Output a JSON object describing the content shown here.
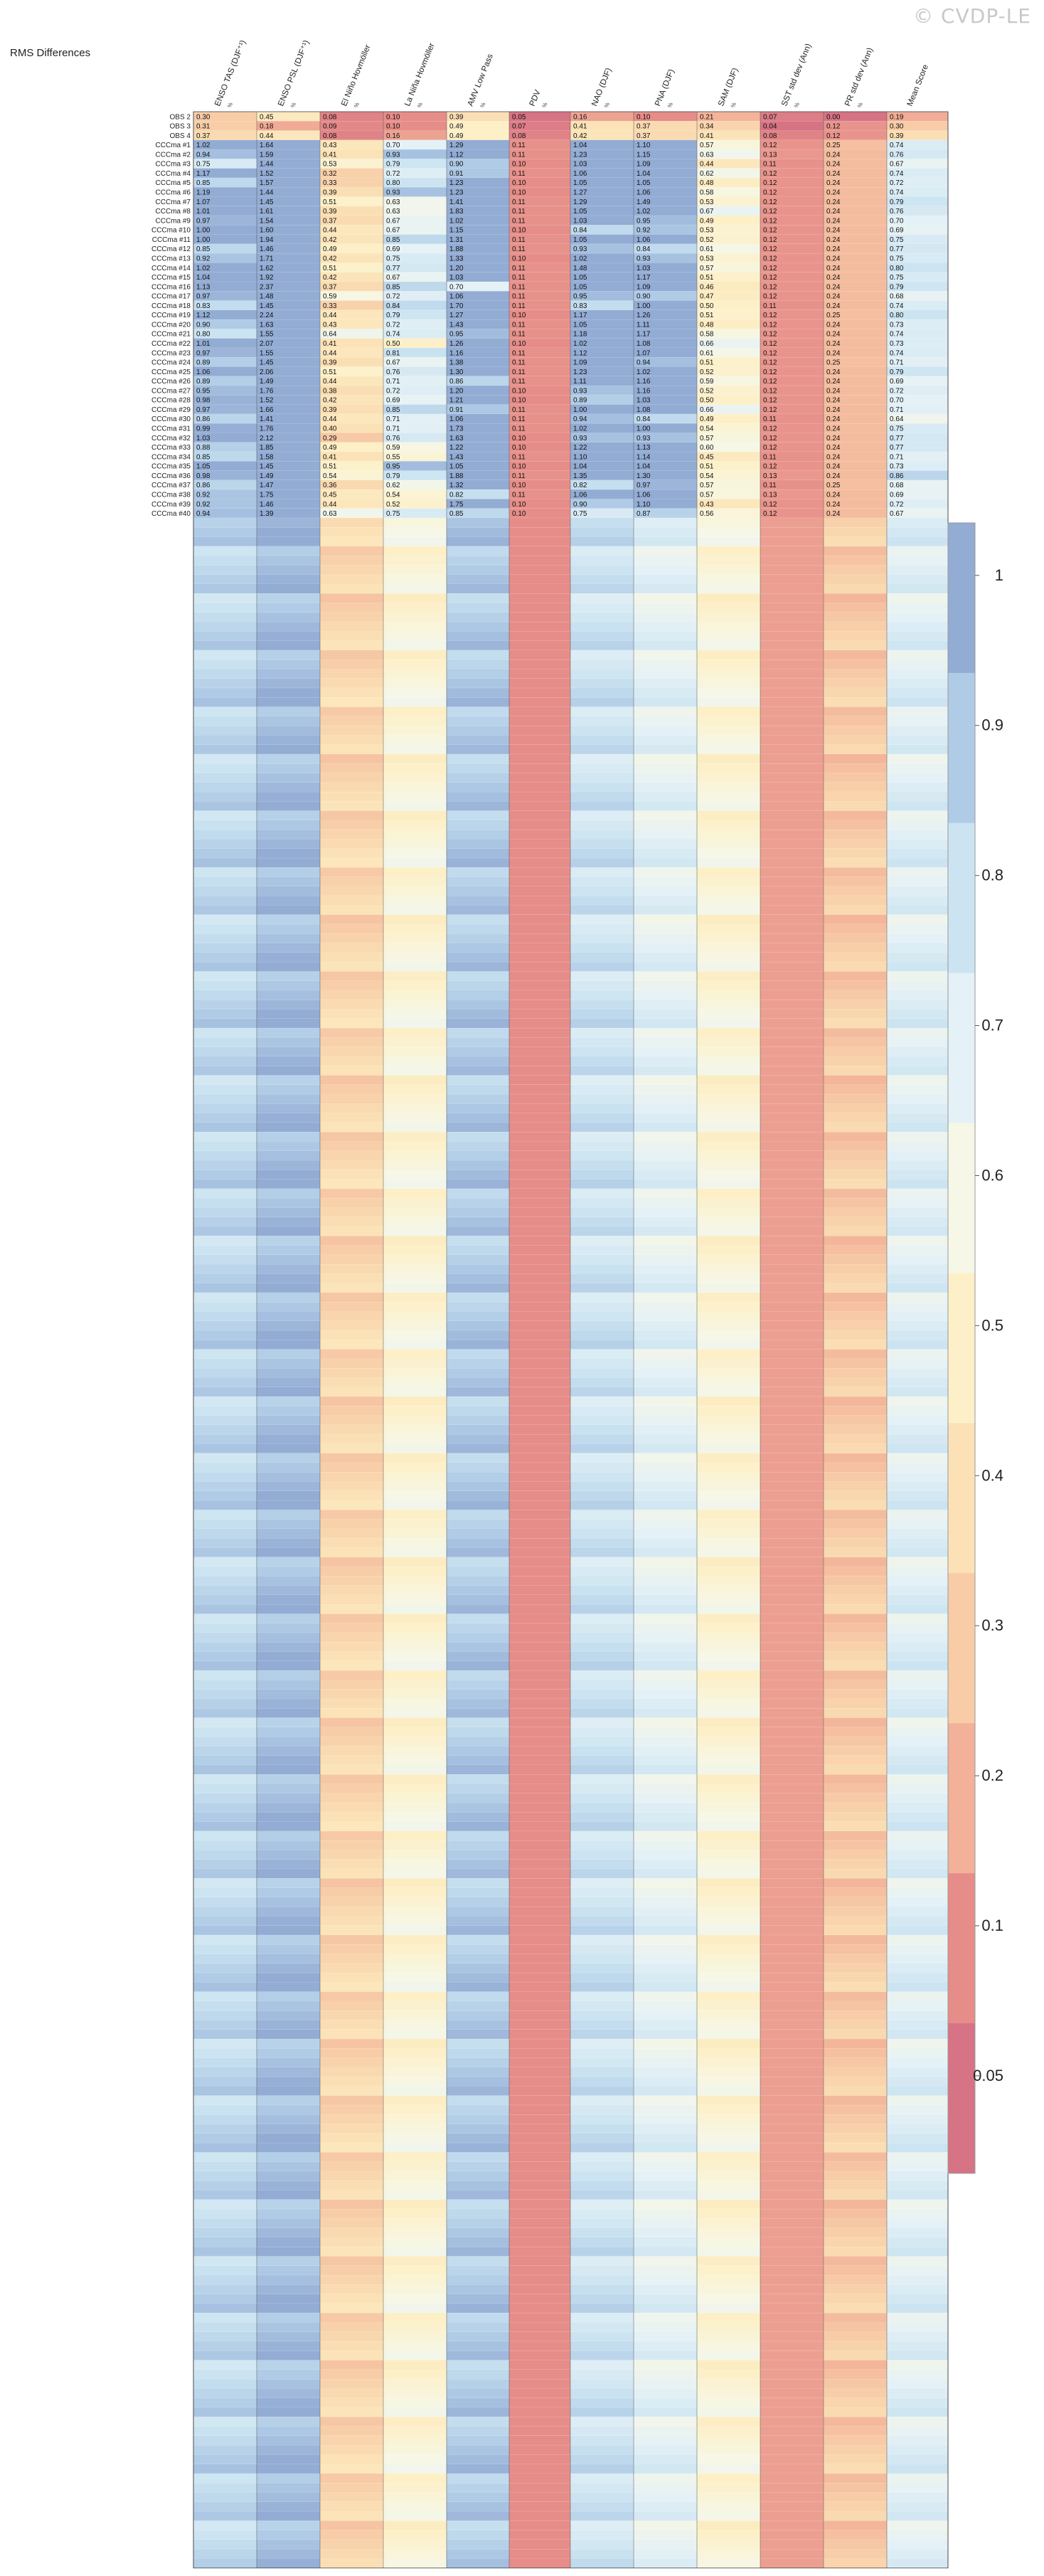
{
  "watermark": "© CVDP-LE",
  "title": "RMS Differences",
  "colorbar_ticks": [
    "1",
    "0.9",
    "0.8",
    "0.7",
    "0.6",
    "0.5",
    "0.4",
    "0.3",
    "0.2",
    "0.1",
    "0.05"
  ],
  "chart_data": {
    "type": "heatmap",
    "title": "RMS Differences",
    "columns": [
      {
        "name": "ENSO TAS (DJF⁺¹)",
        "sub": "%"
      },
      {
        "name": "ENSO PSL (DJF⁺¹)",
        "sub": "%"
      },
      {
        "name": "El Niño Hovmöller",
        "sub": "%"
      },
      {
        "name": "La Niña Hovmöller",
        "sub": "%"
      },
      {
        "name": "AMV Low Pass",
        "sub": "%"
      },
      {
        "name": "PDV",
        "sub": "%"
      },
      {
        "name": "NAO (DJF)",
        "sub": "%"
      },
      {
        "name": "PNA (DJF)",
        "sub": "%"
      },
      {
        "name": "SAM (DJF)",
        "sub": "%"
      },
      {
        "name": "SST std dev (Ann)",
        "sub": "%"
      },
      {
        "name": "PR std dev (Ann)",
        "sub": "%"
      },
      {
        "name": "Mean Score",
        "sub": ""
      }
    ],
    "color_scale": [
      {
        "v": 0.05,
        "c": "#d67385"
      },
      {
        "v": 0.1,
        "c": "#e68d89"
      },
      {
        "v": 0.2,
        "c": "#f2b198"
      },
      {
        "v": 0.3,
        "c": "#f7cca7"
      },
      {
        "v": 0.4,
        "c": "#fbe1b5"
      },
      {
        "v": 0.5,
        "c": "#fdf0c8"
      },
      {
        "v": 0.6,
        "c": "#f6f7e6"
      },
      {
        "v": 0.7,
        "c": "#e4f1f6"
      },
      {
        "v": 0.8,
        "c": "#cce4f1"
      },
      {
        "v": 0.9,
        "c": "#b0cbe6"
      },
      {
        "v": 1.0,
        "c": "#93acd4"
      }
    ],
    "visible_rows": [
      {
        "label": "OBS 2",
        "values": [
          "0.30",
          "0.45",
          "0.08",
          "0.10",
          "0.39",
          "0.05",
          "0.16",
          "0.10",
          "0.21",
          "0.07",
          "0.00",
          "0.19"
        ]
      },
      {
        "label": "OBS 3",
        "values": [
          "0.31",
          "0.18",
          "0.09",
          "0.10",
          "0.49",
          "0.07",
          "0.41",
          "0.37",
          "0.34",
          "0.04",
          "0.12",
          "0.30"
        ]
      },
      {
        "label": "OBS 4",
        "values": [
          "0.37",
          "0.44",
          "0.08",
          "0.16",
          "0.49",
          "0.08",
          "0.42",
          "0.37",
          "0.41",
          "0.08",
          "0.12",
          "0.39"
        ]
      },
      {
        "label": "CCCma #1",
        "values": [
          "1.02",
          "1.64",
          "0.43",
          "0.70",
          "1.29",
          "0.11",
          "1.04",
          "1.10",
          "0.57",
          "0.12",
          "0.25",
          "0.74"
        ]
      },
      {
        "label": "CCCma #2",
        "values": [
          "0.94",
          "1.59",
          "0.41",
          "0.93",
          "1.12",
          "0.11",
          "1.23",
          "1.15",
          "0.63",
          "0.13",
          "0.24",
          "0.76"
        ]
      },
      {
        "label": "CCCma #3",
        "values": [
          "0.75",
          "1.44",
          "0.53",
          "0.79",
          "0.90",
          "0.10",
          "1.03",
          "1.09",
          "0.44",
          "0.11",
          "0.24",
          "0.67"
        ]
      },
      {
        "label": "CCCma #4",
        "values": [
          "1.17",
          "1.52",
          "0.32",
          "0.72",
          "0.91",
          "0.11",
          "1.06",
          "1.04",
          "0.62",
          "0.12",
          "0.24",
          "0.74"
        ]
      },
      {
        "label": "CCCma #5",
        "values": [
          "0.85",
          "1.57",
          "0.33",
          "0.80",
          "1.23",
          "0.10",
          "1.05",
          "1.05",
          "0.48",
          "0.12",
          "0.24",
          "0.72"
        ]
      },
      {
        "label": "CCCma #6",
        "values": [
          "1.19",
          "1.44",
          "0.39",
          "0.93",
          "1.23",
          "0.10",
          "1.27",
          "1.06",
          "0.58",
          "0.12",
          "0.24",
          "0.74"
        ]
      },
      {
        "label": "CCCma #7",
        "values": [
          "1.07",
          "1.45",
          "0.51",
          "0.63",
          "1.41",
          "0.11",
          "1.29",
          "1.49",
          "0.53",
          "0.12",
          "0.24",
          "0.79"
        ]
      },
      {
        "label": "CCCma #8",
        "values": [
          "1.01",
          "1.61",
          "0.39",
          "0.63",
          "1.83",
          "0.11",
          "1.05",
          "1.02",
          "0.67",
          "0.12",
          "0.24",
          "0.76"
        ]
      },
      {
        "label": "CCCma #9",
        "values": [
          "0.97",
          "1.54",
          "0.37",
          "0.67",
          "1.02",
          "0.11",
          "1.03",
          "0.95",
          "0.49",
          "0.12",
          "0.24",
          "0.70"
        ]
      },
      {
        "label": "CCCma #10",
        "values": [
          "1.00",
          "1.60",
          "0.44",
          "0.67",
          "1.15",
          "0.10",
          "0.84",
          "0.92",
          "0.53",
          "0.12",
          "0.24",
          "0.69"
        ]
      },
      {
        "label": "CCCma #11",
        "values": [
          "1.00",
          "1.94",
          "0.42",
          "0.85",
          "1.31",
          "0.11",
          "1.05",
          "1.06",
          "0.52",
          "0.12",
          "0.24",
          "0.75"
        ]
      },
      {
        "label": "CCCma #12",
        "values": [
          "0.85",
          "1.46",
          "0.49",
          "0.69",
          "1.88",
          "0.11",
          "0.93",
          "0.84",
          "0.61",
          "0.12",
          "0.24",
          "0.77"
        ]
      },
      {
        "label": "CCCma #13",
        "values": [
          "0.92",
          "1.71",
          "0.42",
          "0.75",
          "1.33",
          "0.10",
          "1.02",
          "0.93",
          "0.53",
          "0.12",
          "0.24",
          "0.75"
        ]
      },
      {
        "label": "CCCma #14",
        "values": [
          "1.02",
          "1.62",
          "0.51",
          "0.77",
          "1.20",
          "0.11",
          "1.48",
          "1.03",
          "0.57",
          "0.12",
          "0.24",
          "0.80"
        ]
      },
      {
        "label": "CCCma #15",
        "values": [
          "1.04",
          "1.92",
          "0.42",
          "0.67",
          "1.03",
          "0.11",
          "1.05",
          "1.17",
          "0.51",
          "0.12",
          "0.24",
          "0.75"
        ]
      },
      {
        "label": "CCCma #16",
        "values": [
          "1.13",
          "2.37",
          "0.37",
          "0.85",
          "0.70",
          "0.11",
          "1.05",
          "1.09",
          "0.46",
          "0.12",
          "0.24",
          "0.79"
        ]
      },
      {
        "label": "CCCma #17",
        "values": [
          "0.97",
          "1.48",
          "0.59",
          "0.72",
          "1.06",
          "0.11",
          "0.95",
          "0.90",
          "0.47",
          "0.12",
          "0.24",
          "0.68"
        ]
      },
      {
        "label": "CCCma #18",
        "values": [
          "0.83",
          "1.45",
          "0.33",
          "0.84",
          "1.70",
          "0.11",
          "0.83",
          "1.00",
          "0.50",
          "0.11",
          "0.24",
          "0.74"
        ]
      },
      {
        "label": "CCCma #19",
        "values": [
          "1.12",
          "2.24",
          "0.44",
          "0.79",
          "1.27",
          "0.10",
          "1.17",
          "1.26",
          "0.51",
          "0.12",
          "0.25",
          "0.80"
        ]
      },
      {
        "label": "CCCma #20",
        "values": [
          "0.90",
          "1.63",
          "0.43",
          "0.72",
          "1.43",
          "0.11",
          "1.05",
          "1.11",
          "0.48",
          "0.12",
          "0.24",
          "0.73"
        ]
      },
      {
        "label": "CCCma #21",
        "values": [
          "0.80",
          "1.55",
          "0.64",
          "0.74",
          "0.95",
          "0.11",
          "1.18",
          "1.17",
          "0.58",
          "0.12",
          "0.24",
          "0.74"
        ]
      },
      {
        "label": "CCCma #22",
        "values": [
          "1.01",
          "2.07",
          "0.41",
          "0.50",
          "1.26",
          "0.10",
          "1.02",
          "1.08",
          "0.66",
          "0.12",
          "0.24",
          "0.73"
        ]
      },
      {
        "label": "CCCma #23",
        "values": [
          "0.97",
          "1.55",
          "0.44",
          "0.81",
          "1.16",
          "0.11",
          "1.12",
          "1.07",
          "0.61",
          "0.12",
          "0.24",
          "0.74"
        ]
      },
      {
        "label": "CCCma #24",
        "values": [
          "0.89",
          "1.45",
          "0.39",
          "0.67",
          "1.38",
          "0.11",
          "1.09",
          "0.94",
          "0.51",
          "0.12",
          "0.25",
          "0.71"
        ]
      },
      {
        "label": "CCCma #25",
        "values": [
          "1.06",
          "2.06",
          "0.51",
          "0.76",
          "1.30",
          "0.11",
          "1.23",
          "1.02",
          "0.52",
          "0.12",
          "0.24",
          "0.79"
        ]
      },
      {
        "label": "CCCma #26",
        "values": [
          "0.89",
          "1.49",
          "0.44",
          "0.71",
          "0.86",
          "0.11",
          "1.11",
          "1.16",
          "0.59",
          "0.12",
          "0.24",
          "0.69"
        ]
      },
      {
        "label": "CCCma #27",
        "values": [
          "0.95",
          "1.76",
          "0.38",
          "0.72",
          "1.20",
          "0.10",
          "0.93",
          "1.16",
          "0.52",
          "0.12",
          "0.24",
          "0.72"
        ]
      },
      {
        "label": "CCCma #28",
        "values": [
          "0.98",
          "1.52",
          "0.42",
          "0.69",
          "1.21",
          "0.10",
          "0.89",
          "1.03",
          "0.50",
          "0.12",
          "0.24",
          "0.70"
        ]
      },
      {
        "label": "CCCma #29",
        "values": [
          "0.97",
          "1.66",
          "0.39",
          "0.85",
          "0.91",
          "0.11",
          "1.00",
          "1.08",
          "0.66",
          "0.12",
          "0.24",
          "0.71"
        ]
      },
      {
        "label": "CCCma #30",
        "values": [
          "0.86",
          "1.41",
          "0.44",
          "0.71",
          "1.06",
          "0.11",
          "0.94",
          "0.84",
          "0.49",
          "0.11",
          "0.24",
          "0.64"
        ]
      },
      {
        "label": "CCCma #31",
        "values": [
          "0.99",
          "1.76",
          "0.40",
          "0.71",
          "1.73",
          "0.11",
          "1.02",
          "1.00",
          "0.54",
          "0.12",
          "0.24",
          "0.75"
        ]
      },
      {
        "label": "CCCma #32",
        "values": [
          "1.03",
          "2.12",
          "0.29",
          "0.76",
          "1.63",
          "0.10",
          "0.93",
          "0.93",
          "0.57",
          "0.12",
          "0.24",
          "0.77"
        ]
      },
      {
        "label": "CCCma #33",
        "values": [
          "0.88",
          "1.85",
          "0.49",
          "0.59",
          "1.22",
          "0.10",
          "1.22",
          "1.13",
          "0.60",
          "0.12",
          "0.24",
          "0.77"
        ]
      },
      {
        "label": "CCCma #34",
        "values": [
          "0.85",
          "1.58",
          "0.41",
          "0.55",
          "1.43",
          "0.11",
          "1.10",
          "1.14",
          "0.45",
          "0.11",
          "0.24",
          "0.71"
        ]
      },
      {
        "label": "CCCma #35",
        "values": [
          "1.05",
          "1.45",
          "0.51",
          "0.95",
          "1.05",
          "0.10",
          "1.04",
          "1.04",
          "0.51",
          "0.12",
          "0.24",
          "0.73"
        ]
      },
      {
        "label": "CCCma #36",
        "values": [
          "0.98",
          "1.49",
          "0.54",
          "0.79",
          "1.88",
          "0.11",
          "1.35",
          "1.30",
          "0.54",
          "0.13",
          "0.24",
          "0.86"
        ]
      },
      {
        "label": "CCCma #37",
        "values": [
          "0.86",
          "1.47",
          "0.36",
          "0.62",
          "1.32",
          "0.10",
          "0.82",
          "0.97",
          "0.57",
          "0.11",
          "0.25",
          "0.68"
        ]
      },
      {
        "label": "CCCma #38",
        "values": [
          "0.92",
          "1.75",
          "0.45",
          "0.54",
          "0.82",
          "0.11",
          "1.06",
          "1.06",
          "0.57",
          "0.13",
          "0.24",
          "0.69"
        ]
      },
      {
        "label": "CCCma #39",
        "values": [
          "0.92",
          "1.46",
          "0.44",
          "0.52",
          "1.75",
          "0.10",
          "0.90",
          "1.10",
          "0.43",
          "0.12",
          "0.24",
          "0.72"
        ]
      },
      {
        "label": "CCCma #40",
        "values": [
          "0.94",
          "1.39",
          "0.63",
          "0.75",
          "0.85",
          "0.10",
          "0.75",
          "0.87",
          "0.56",
          "0.12",
          "0.24",
          "0.67"
        ]
      }
    ],
    "n_rows_total": 260
  }
}
